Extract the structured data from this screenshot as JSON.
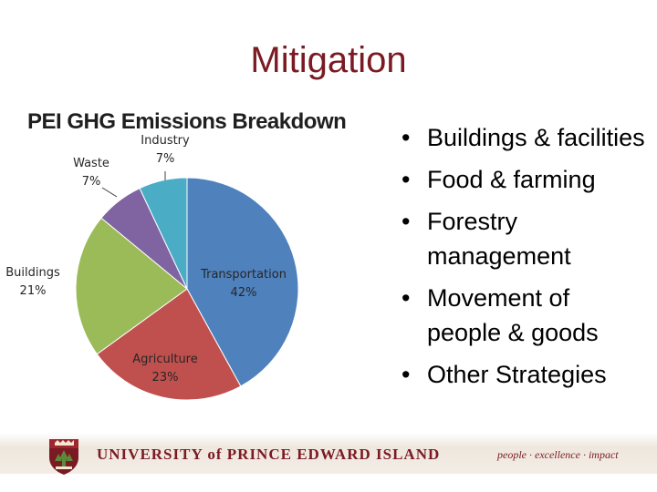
{
  "slide": {
    "title": "Mitigation",
    "bullets": [
      "Buildings & facilities",
      "Food & farming",
      "Forestry management",
      "Movement of people & goods",
      "Other Strategies"
    ]
  },
  "chart_data": {
    "type": "pie",
    "title": "PEI GHG Emissions Breakdown",
    "slices": [
      {
        "label": "Transportation",
        "value": 42,
        "display": "42%",
        "color": "#4f81bd"
      },
      {
        "label": "Agriculture",
        "value": 23,
        "display": "23%",
        "color": "#c0504d"
      },
      {
        "label": "Buildings",
        "value": 21,
        "display": "21%",
        "color": "#9bbb59"
      },
      {
        "label": "Waste",
        "value": 7,
        "display": "7%",
        "color": "#8064a2"
      },
      {
        "label": "Industry",
        "value": 7,
        "display": "7%",
        "color": "#4bacc6"
      }
    ]
  },
  "footer": {
    "university": "UNIVERSITY of PRINCE EDWARD ISLAND",
    "tagline": "people · excellence · impact",
    "brand_color": "#7a1a22"
  }
}
